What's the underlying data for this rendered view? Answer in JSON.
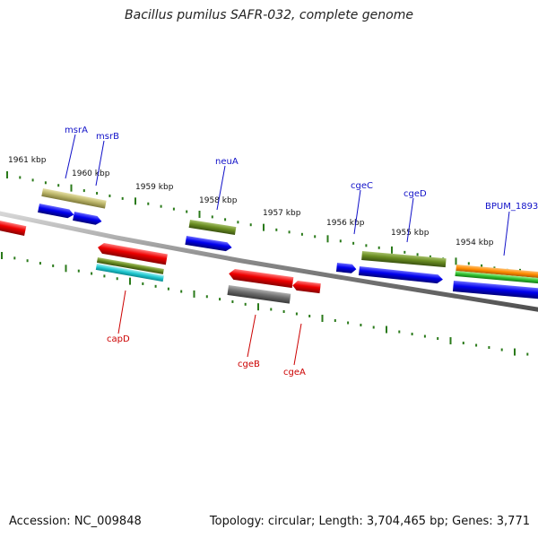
{
  "title": "Bacillus pumilus SAFR-032, complete genome",
  "footer": {
    "accession": "Accession: NC_009848",
    "stats": "Topology: circular; Length: 3,704,465 bp; Genes: 3,771"
  },
  "kbp_labels": [
    "1961 kbp",
    "1960 kbp",
    "1959 kbp",
    "1958 kbp",
    "1957 kbp",
    "1956 kbp",
    "1955 kbp",
    "1954 kbp"
  ],
  "gene_labels": {
    "top": [
      "msrA",
      "msrB",
      "neuA",
      "cgeC",
      "cgeD",
      "BPUM_1893"
    ],
    "bottom": [
      "capD",
      "cgeB",
      "cgeA"
    ]
  },
  "colors": {
    "top_label": "#1010c8",
    "bottom_label": "#cc0000",
    "ticks": "#2a7a1a",
    "backbone": "#808080"
  }
}
